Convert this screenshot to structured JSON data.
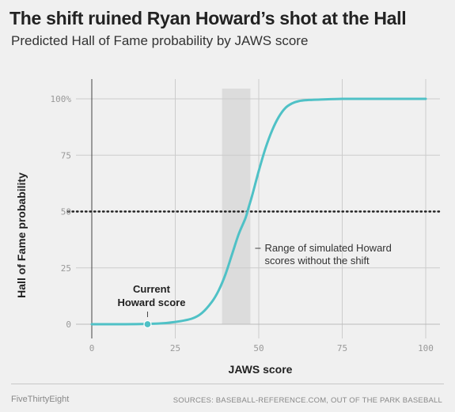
{
  "title": "The shift ruined Ryan Howard’s shot at the Hall",
  "subtitle": "Predicted Hall of Fame probability by JAWS score",
  "footer": {
    "brand": "FiveThirtyEight",
    "sources": "SOURCES: BASEBALL-REFERENCE.COM, OUT OF THE PARK BASEBALL"
  },
  "chart_data": {
    "type": "line",
    "xlabel": "JAWS score",
    "ylabel": "Hall of Fame probability",
    "xlim": [
      0,
      100
    ],
    "ylim": [
      0,
      100
    ],
    "x_ticks": [
      0,
      25,
      50,
      75,
      100
    ],
    "x_tick_labels": [
      "0",
      "25",
      "50",
      "75",
      "100"
    ],
    "y_ticks": [
      0,
      25,
      50,
      75,
      100
    ],
    "y_tick_labels": [
      "0",
      "25",
      "50",
      "75",
      "100%"
    ],
    "grid": true,
    "curve_color": "#4fc1c6",
    "series": [
      {
        "x": [
          0,
          10,
          20,
          25,
          30,
          33,
          36,
          38,
          40,
          42,
          44,
          46,
          47,
          48,
          50,
          52,
          54,
          56,
          58,
          60,
          62,
          65,
          70,
          75,
          80,
          90,
          100
        ],
        "y": [
          0,
          0,
          0.3,
          1,
          2.5,
          5,
          10,
          15,
          22,
          31,
          40,
          47,
          52,
          57,
          68,
          78,
          86,
          92,
          96,
          98,
          99,
          99.5,
          99.8,
          100,
          100,
          100,
          100
        ]
      }
    ],
    "reference_line": {
      "y": 50,
      "style": "dotted",
      "color": "#222222"
    },
    "shaded_range": {
      "x": [
        39,
        47.5
      ],
      "color": "#dcdcdc",
      "label_lines": [
        "Range of simulated Howard",
        "scores without the shift"
      ]
    },
    "point": {
      "x": 16.7,
      "y": 0,
      "color": "#4fc1c6",
      "label_lines": [
        "Current",
        "Howard score"
      ]
    }
  }
}
